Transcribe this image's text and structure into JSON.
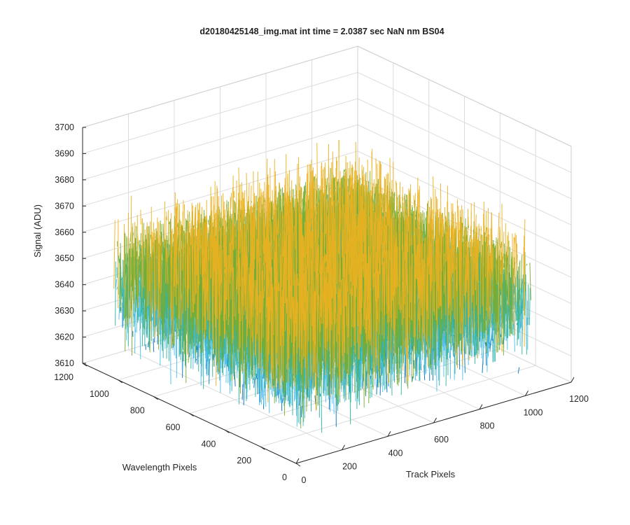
{
  "chart_data": {
    "type": "surface",
    "title": "d20180425148_img.mat int time = 2.0387 sec  NaN nm BS04",
    "xlabel": "Track Pixels",
    "ylabel": "Wavelength Pixels",
    "zlabel": "Signal (ADU)",
    "xlim": [
      0,
      1200
    ],
    "ylim": [
      0,
      1200
    ],
    "zlim": [
      3610,
      3700
    ],
    "x_ticks": [
      "0",
      "200",
      "400",
      "600",
      "800",
      "1000",
      "1200"
    ],
    "y_ticks": [
      "0",
      "200",
      "400",
      "600",
      "800",
      "1000",
      "1200"
    ],
    "z_ticks": [
      "3610",
      "3620",
      "3630",
      "3640",
      "3650",
      "3660",
      "3670",
      "3680",
      "3690",
      "3700"
    ],
    "data_extent": {
      "x": [
        0,
        1024
      ],
      "y": [
        0,
        1024
      ]
    },
    "signal_mean": 3648,
    "signal_noise_range": [
      3612,
      3695
    ],
    "grid": true,
    "colors": {
      "low": "#0072BD",
      "mid": "#4DBEEE",
      "mid2": "#2FB3A0",
      "high": "#77AC30",
      "peak": "#EDB120"
    }
  }
}
